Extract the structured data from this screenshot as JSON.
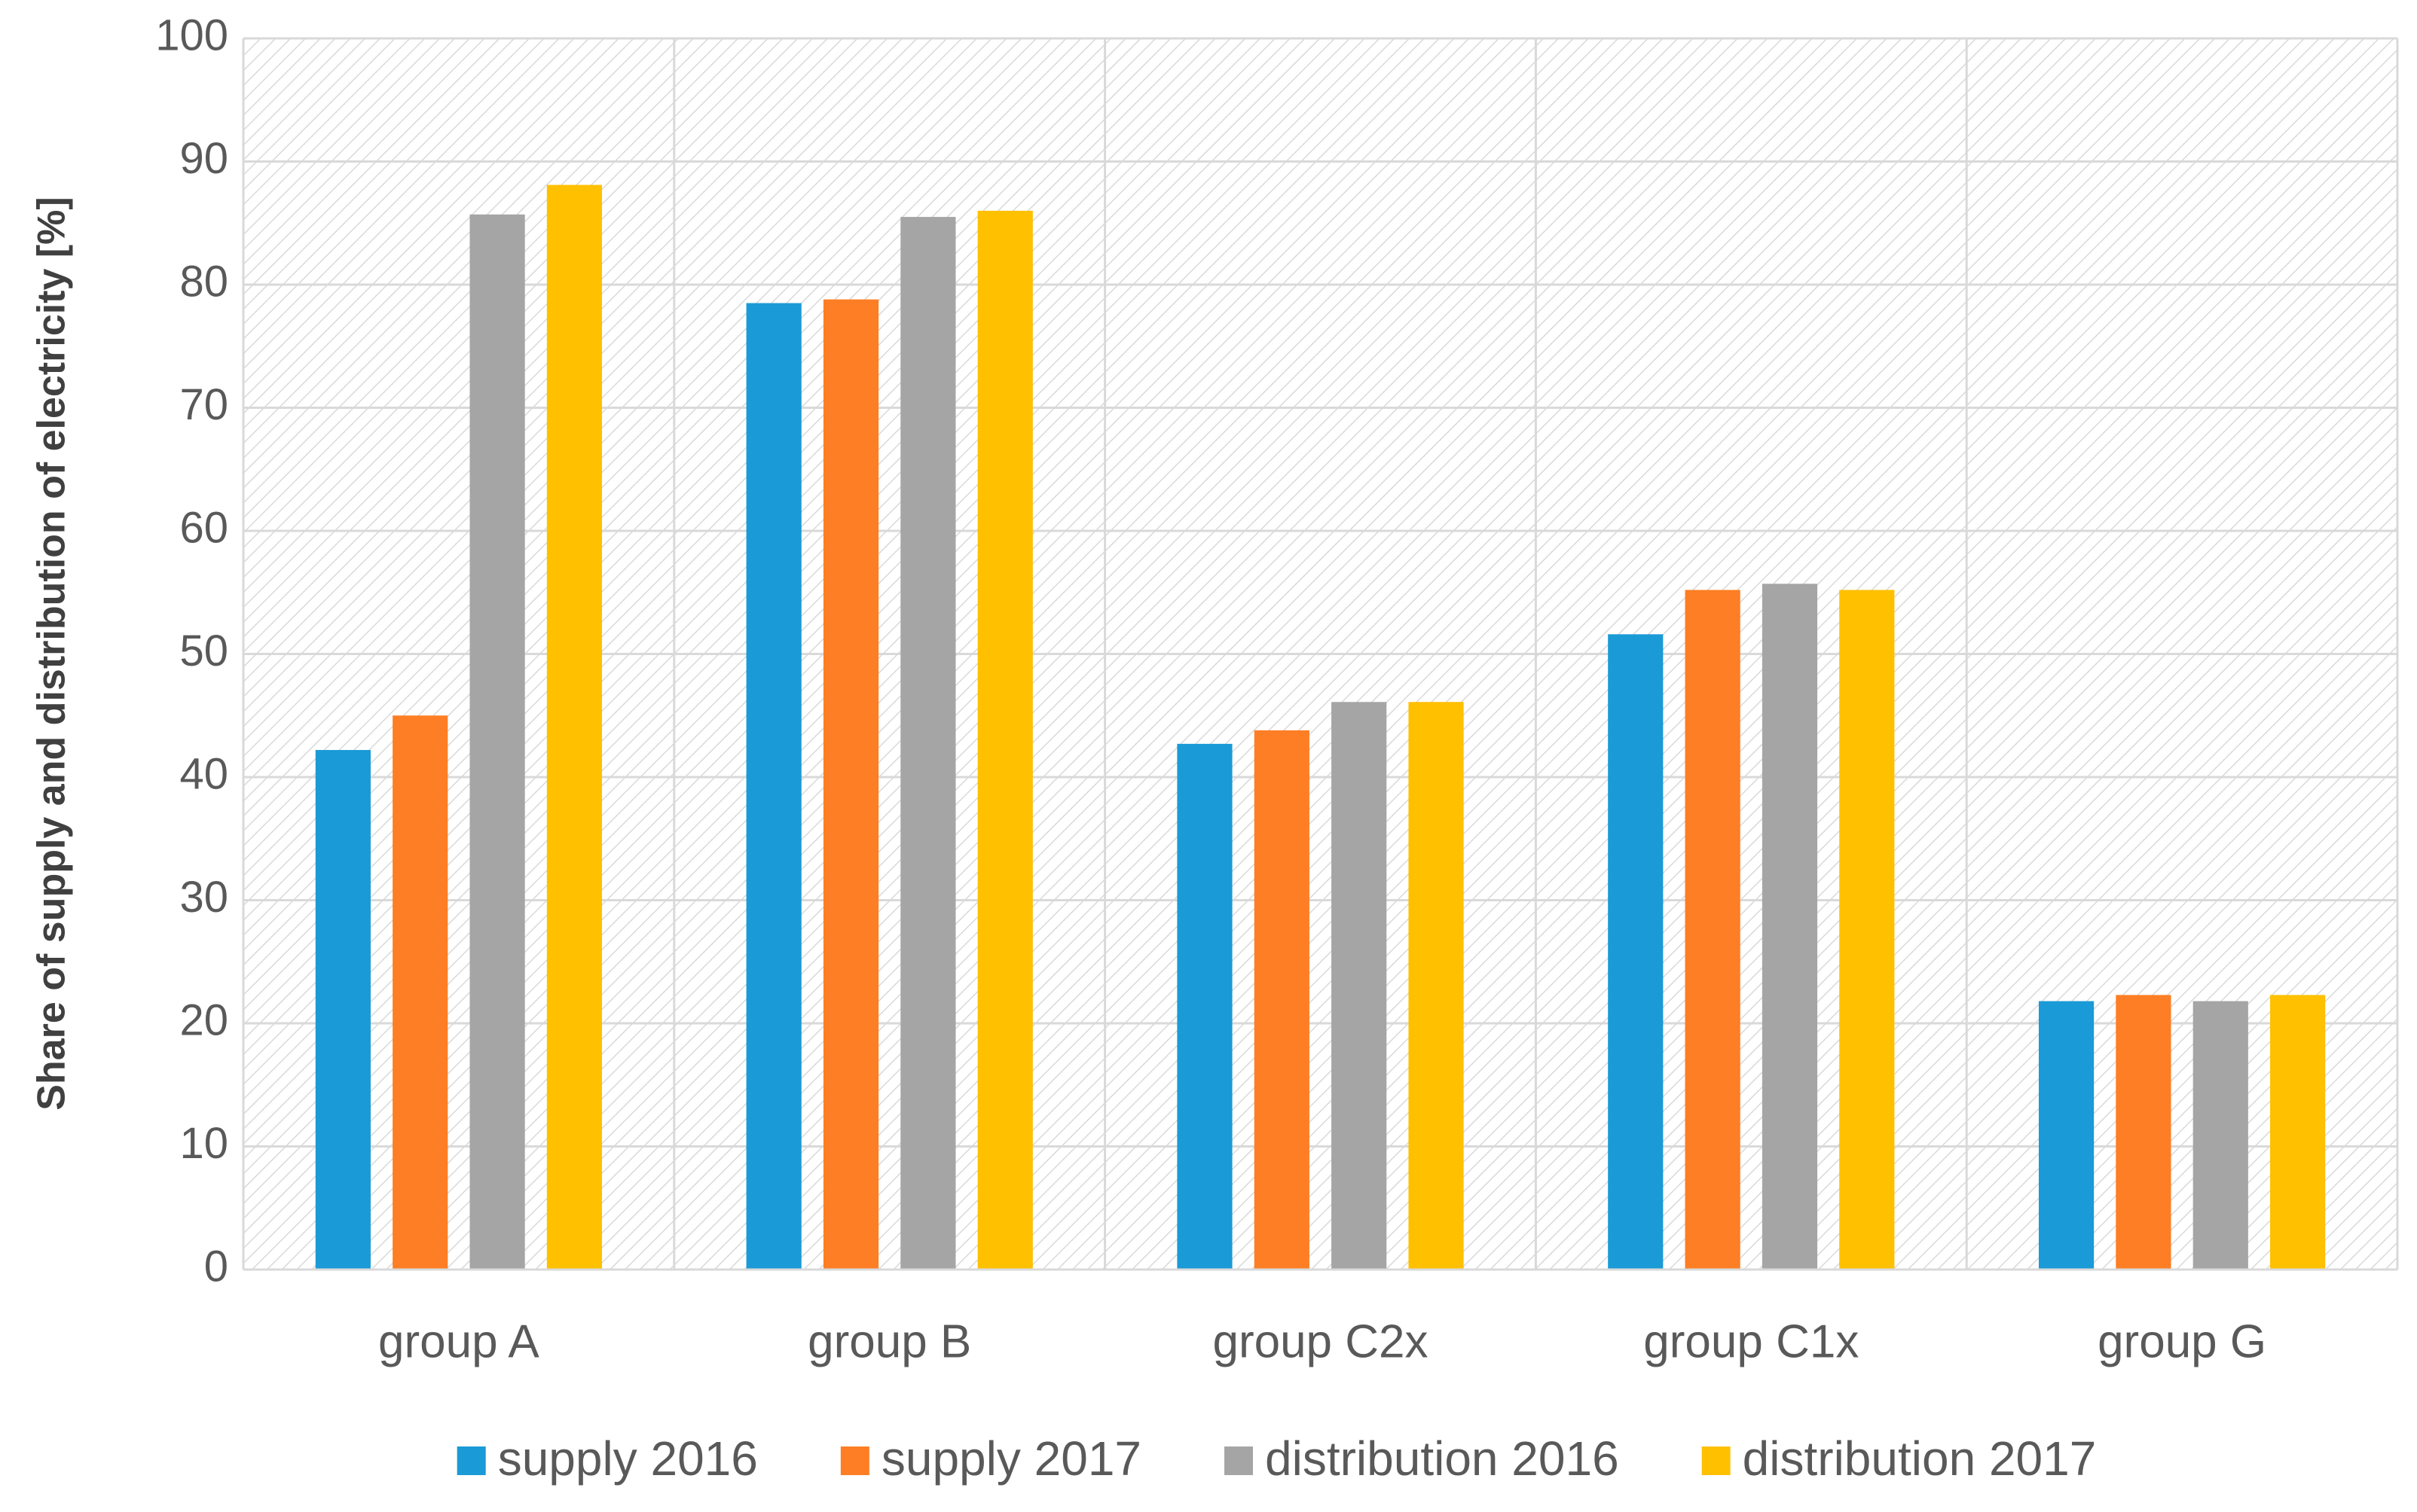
{
  "chart_data": {
    "type": "bar",
    "y_label": "Share of supply and distribution of electricity [%]",
    "categories": [
      "group A",
      "group B",
      "group C2x",
      "group C1x",
      "group G"
    ],
    "series": [
      {
        "name": "supply 2016",
        "color": "#1a9ad6",
        "values": [
          42.2,
          78.5,
          42.7,
          51.6,
          21.8
        ]
      },
      {
        "name": "supply 2017",
        "color": "#fd7e24",
        "values": [
          45.0,
          78.8,
          43.8,
          55.2,
          22.3
        ]
      },
      {
        "name": "distribution 2016",
        "color": "#a5a5a5",
        "values": [
          85.7,
          85.5,
          46.1,
          55.7,
          21.8
        ]
      },
      {
        "name": "distribution 2017",
        "color": "#ffc000",
        "values": [
          88.1,
          86.0,
          46.1,
          55.2,
          22.3
        ]
      }
    ],
    "ylim": [
      0,
      100
    ],
    "yticks": [
      0,
      10,
      20,
      30,
      40,
      50,
      60,
      70,
      80,
      90,
      100
    ],
    "grid": true,
    "legend": "bottom"
  }
}
